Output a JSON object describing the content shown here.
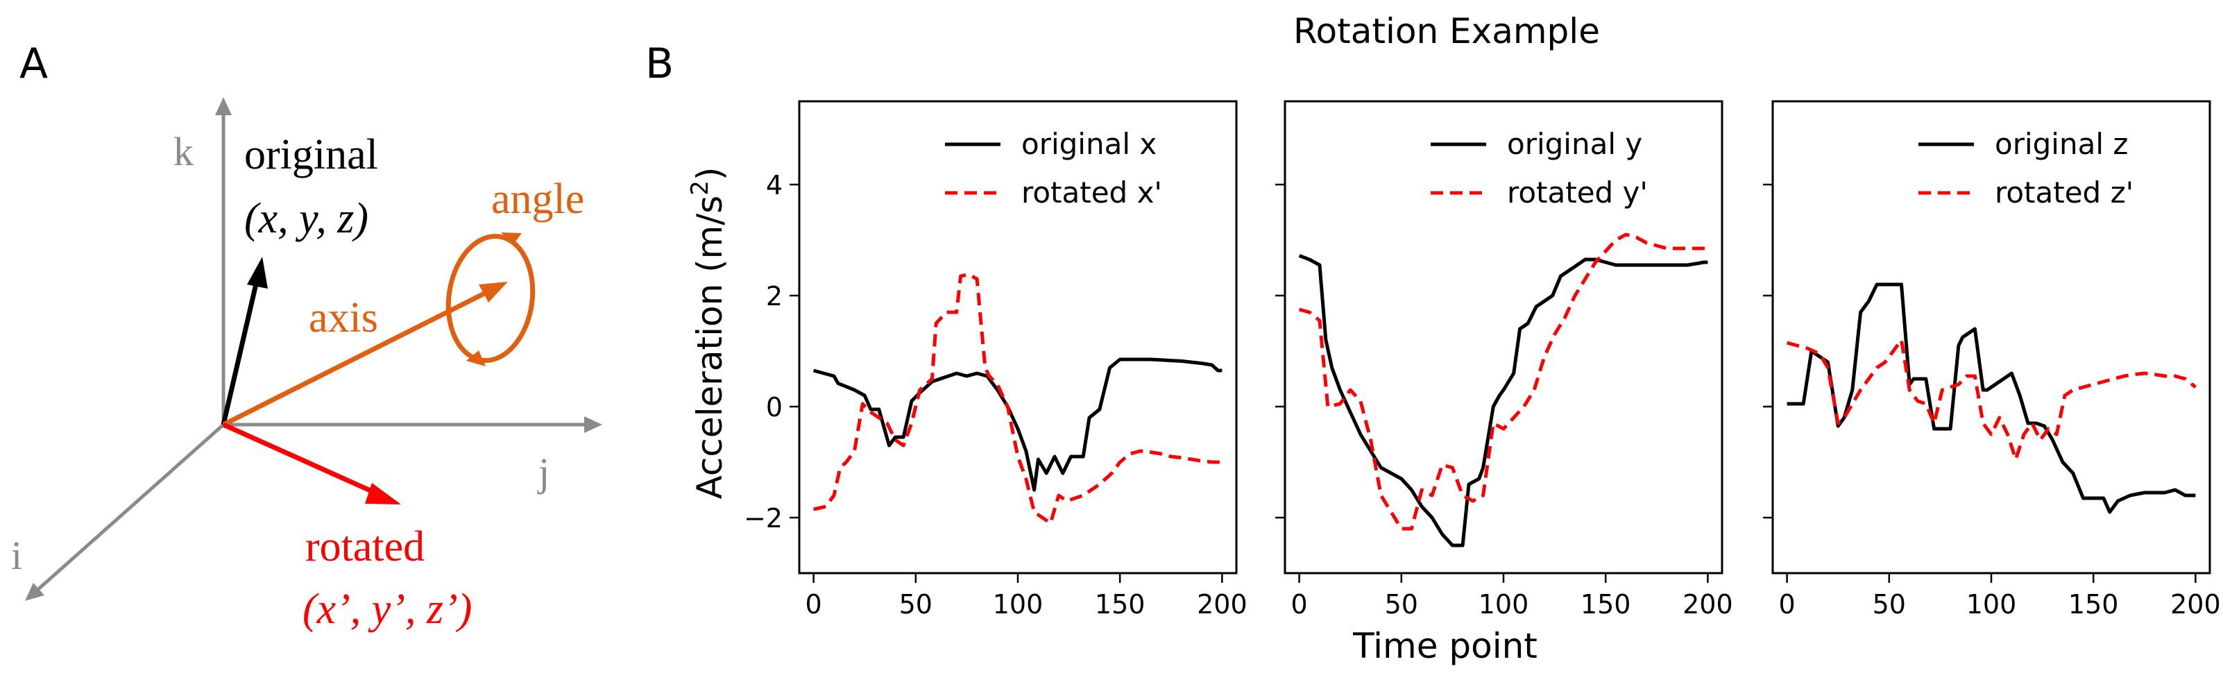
{
  "panel_a": {
    "label": "A",
    "axis_i": "i",
    "axis_j": "j",
    "axis_k": "k",
    "original_label": "original",
    "original_coords": "(x, y, z)",
    "rotated_label": "rotated",
    "rotated_coords": "(x’, y’, z’)",
    "axis_label": "axis",
    "angle_label": "angle",
    "colors": {
      "axes": "#8a8a8a",
      "original": "#000000",
      "rotated": "#ff0000",
      "rotation": "#e06010"
    }
  },
  "panel_b": {
    "label": "B",
    "suptitle": "Rotation Example",
    "xlabel": "Time point",
    "ylabel_main": "Acceleration (m/s",
    "ylabel_sup": "2",
    "ylabel_end": ")"
  },
  "chart_data": [
    {
      "type": "line",
      "title": "",
      "xlim": [
        -7,
        207
      ],
      "ylim": [
        -3.0,
        5.5
      ],
      "xticks": [
        0,
        50,
        100,
        150,
        200
      ],
      "yticks": [
        -2,
        0,
        2,
        4
      ],
      "legend_position": "top-right",
      "series": [
        {
          "name": "original x",
          "color": "#000000",
          "dash": "solid",
          "x": [
            0,
            10,
            12,
            20,
            25,
            28,
            32,
            37,
            40,
            44,
            48,
            52,
            58,
            62,
            66,
            70,
            75,
            80,
            85,
            90,
            95,
            100,
            104,
            108,
            110,
            114,
            118,
            122,
            126,
            132,
            135,
            140,
            145,
            150,
            155,
            160,
            165,
            170,
            175,
            180,
            185,
            190,
            195,
            198,
            200
          ],
          "y": [
            0.65,
            0.55,
            0.42,
            0.3,
            0.2,
            -0.05,
            -0.05,
            -0.7,
            -0.55,
            -0.55,
            0.1,
            0.25,
            0.45,
            0.5,
            0.55,
            0.6,
            0.55,
            0.6,
            0.55,
            0.3,
            0.0,
            -0.4,
            -0.8,
            -1.5,
            -0.95,
            -1.2,
            -0.9,
            -1.2,
            -0.9,
            -0.9,
            -0.2,
            -0.05,
            0.7,
            0.85,
            0.85,
            0.85,
            0.85,
            0.84,
            0.83,
            0.82,
            0.8,
            0.78,
            0.75,
            0.65,
            0.65
          ]
        },
        {
          "name": "rotated x'",
          "color": "#ff0000",
          "dash": "dashed",
          "x": [
            0,
            6,
            10,
            13,
            16,
            20,
            24,
            28,
            32,
            36,
            40,
            44,
            48,
            52,
            58,
            60,
            65,
            70,
            72,
            76,
            80,
            84,
            86,
            90,
            95,
            100,
            104,
            108,
            112,
            116,
            120,
            124,
            128,
            132,
            136,
            140,
            146,
            150,
            155,
            160,
            165,
            170,
            175,
            180,
            185,
            190,
            195,
            200
          ],
          "y": [
            -1.85,
            -1.8,
            -1.6,
            -1.1,
            -1.0,
            -0.8,
            0.05,
            -0.1,
            -0.2,
            -0.3,
            -0.6,
            -0.7,
            -0.3,
            0.3,
            0.5,
            1.5,
            1.7,
            1.7,
            2.35,
            2.38,
            2.3,
            0.7,
            0.55,
            0.4,
            0.0,
            -0.9,
            -1.3,
            -1.9,
            -2.0,
            -2.1,
            -1.6,
            -1.7,
            -1.65,
            -1.6,
            -1.5,
            -1.4,
            -1.2,
            -1.0,
            -0.85,
            -0.8,
            -0.82,
            -0.85,
            -0.9,
            -0.92,
            -0.95,
            -0.98,
            -1.0,
            -1.0
          ]
        }
      ]
    },
    {
      "type": "line",
      "title": "",
      "xlim": [
        -7,
        207
      ],
      "ylim": [
        -3.0,
        5.5
      ],
      "xticks": [
        0,
        50,
        100,
        150,
        200
      ],
      "yticks": [
        -2,
        0,
        2,
        4
      ],
      "legend_position": "top-right",
      "series": [
        {
          "name": "original y",
          "color": "#000000",
          "dash": "solid",
          "x": [
            0,
            5,
            10,
            13,
            16,
            20,
            25,
            30,
            35,
            40,
            45,
            50,
            55,
            60,
            65,
            70,
            75,
            80,
            83,
            88,
            90,
            95,
            98,
            100,
            105,
            108,
            112,
            116,
            120,
            124,
            128,
            132,
            136,
            140,
            145,
            150,
            155,
            160,
            165,
            170,
            175,
            180,
            185,
            190,
            195,
            198,
            200
          ],
          "y": [
            2.72,
            2.65,
            2.55,
            1.2,
            0.7,
            0.3,
            -0.1,
            -0.5,
            -0.8,
            -1.1,
            -1.2,
            -1.3,
            -1.5,
            -1.8,
            -2.0,
            -2.3,
            -2.5,
            -2.5,
            -1.4,
            -1.3,
            -1.1,
            0.0,
            0.2,
            0.3,
            0.6,
            1.4,
            1.5,
            1.8,
            1.9,
            2.0,
            2.35,
            2.45,
            2.55,
            2.65,
            2.65,
            2.6,
            2.55,
            2.55,
            2.55,
            2.55,
            2.55,
            2.55,
            2.55,
            2.55,
            2.58,
            2.6,
            2.6
          ]
        },
        {
          "name": "rotated y'",
          "color": "#ff0000",
          "dash": "dashed",
          "x": [
            0,
            5,
            10,
            14,
            20,
            25,
            30,
            35,
            40,
            45,
            50,
            55,
            60,
            65,
            70,
            75,
            80,
            85,
            90,
            95,
            100,
            105,
            110,
            115,
            120,
            125,
            130,
            135,
            140,
            145,
            150,
            155,
            160,
            165,
            170,
            175,
            180,
            185,
            190,
            195,
            200
          ],
          "y": [
            1.75,
            1.7,
            1.55,
            0.0,
            0.05,
            0.3,
            0.1,
            -0.6,
            -1.6,
            -1.9,
            -2.2,
            -2.2,
            -1.5,
            -1.6,
            -1.05,
            -1.1,
            -1.6,
            -1.7,
            -1.6,
            -0.3,
            -0.4,
            -0.2,
            0.0,
            0.3,
            0.9,
            1.3,
            1.6,
            2.0,
            2.3,
            2.6,
            2.8,
            3.0,
            3.1,
            3.05,
            2.95,
            2.9,
            2.85,
            2.85,
            2.85,
            2.85,
            2.85
          ]
        }
      ]
    },
    {
      "type": "line",
      "title": "",
      "xlim": [
        -7,
        207
      ],
      "ylim": [
        -3.0,
        5.5
      ],
      "xticks": [
        0,
        50,
        100,
        150,
        200
      ],
      "yticks": [
        -2,
        0,
        2,
        4
      ],
      "legend_position": "top-right",
      "series": [
        {
          "name": "original z",
          "color": "#000000",
          "dash": "solid",
          "x": [
            0,
            8,
            12,
            16,
            20,
            25,
            28,
            32,
            36,
            40,
            44,
            48,
            52,
            56,
            60,
            62,
            64,
            68,
            72,
            76,
            80,
            84,
            86,
            88,
            92,
            96,
            98,
            102,
            106,
            110,
            114,
            118,
            122,
            126,
            130,
            135,
            140,
            145,
            150,
            155,
            158,
            162,
            168,
            175,
            180,
            185,
            190,
            195,
            200
          ],
          "y": [
            0.05,
            0.05,
            1.0,
            0.9,
            0.8,
            -0.35,
            -0.2,
            0.3,
            1.7,
            1.9,
            2.2,
            2.2,
            2.2,
            2.2,
            0.4,
            0.5,
            0.5,
            0.5,
            -0.4,
            -0.4,
            -0.4,
            1.1,
            1.25,
            1.3,
            1.4,
            0.3,
            0.3,
            0.4,
            0.5,
            0.6,
            0.2,
            -0.3,
            -0.3,
            -0.35,
            -0.6,
            -1.0,
            -1.2,
            -1.65,
            -1.65,
            -1.65,
            -1.9,
            -1.7,
            -1.6,
            -1.55,
            -1.55,
            -1.55,
            -1.5,
            -1.6,
            -1.6
          ]
        },
        {
          "name": "rotated z'",
          "color": "#ff0000",
          "dash": "dashed",
          "x": [
            0,
            5,
            10,
            16,
            20,
            25,
            28,
            32,
            36,
            40,
            44,
            48,
            52,
            56,
            60,
            64,
            68,
            72,
            76,
            80,
            84,
            88,
            92,
            96,
            100,
            104,
            108,
            112,
            116,
            120,
            124,
            128,
            132,
            136,
            140,
            145,
            150,
            155,
            160,
            165,
            170,
            175,
            180,
            185,
            190,
            195,
            200
          ],
          "y": [
            1.15,
            1.1,
            1.05,
            0.95,
            0.7,
            -0.3,
            -0.2,
            0.05,
            0.3,
            0.5,
            0.7,
            0.8,
            1.0,
            1.2,
            0.3,
            0.1,
            0.05,
            -0.3,
            0.3,
            0.35,
            0.4,
            0.55,
            0.55,
            -0.3,
            -0.5,
            -0.2,
            -0.5,
            -0.95,
            -0.5,
            -0.3,
            -0.6,
            -0.4,
            -0.5,
            0.2,
            0.3,
            0.35,
            0.4,
            0.45,
            0.5,
            0.55,
            0.58,
            0.6,
            0.58,
            0.55,
            0.55,
            0.5,
            0.35
          ]
        }
      ]
    }
  ]
}
